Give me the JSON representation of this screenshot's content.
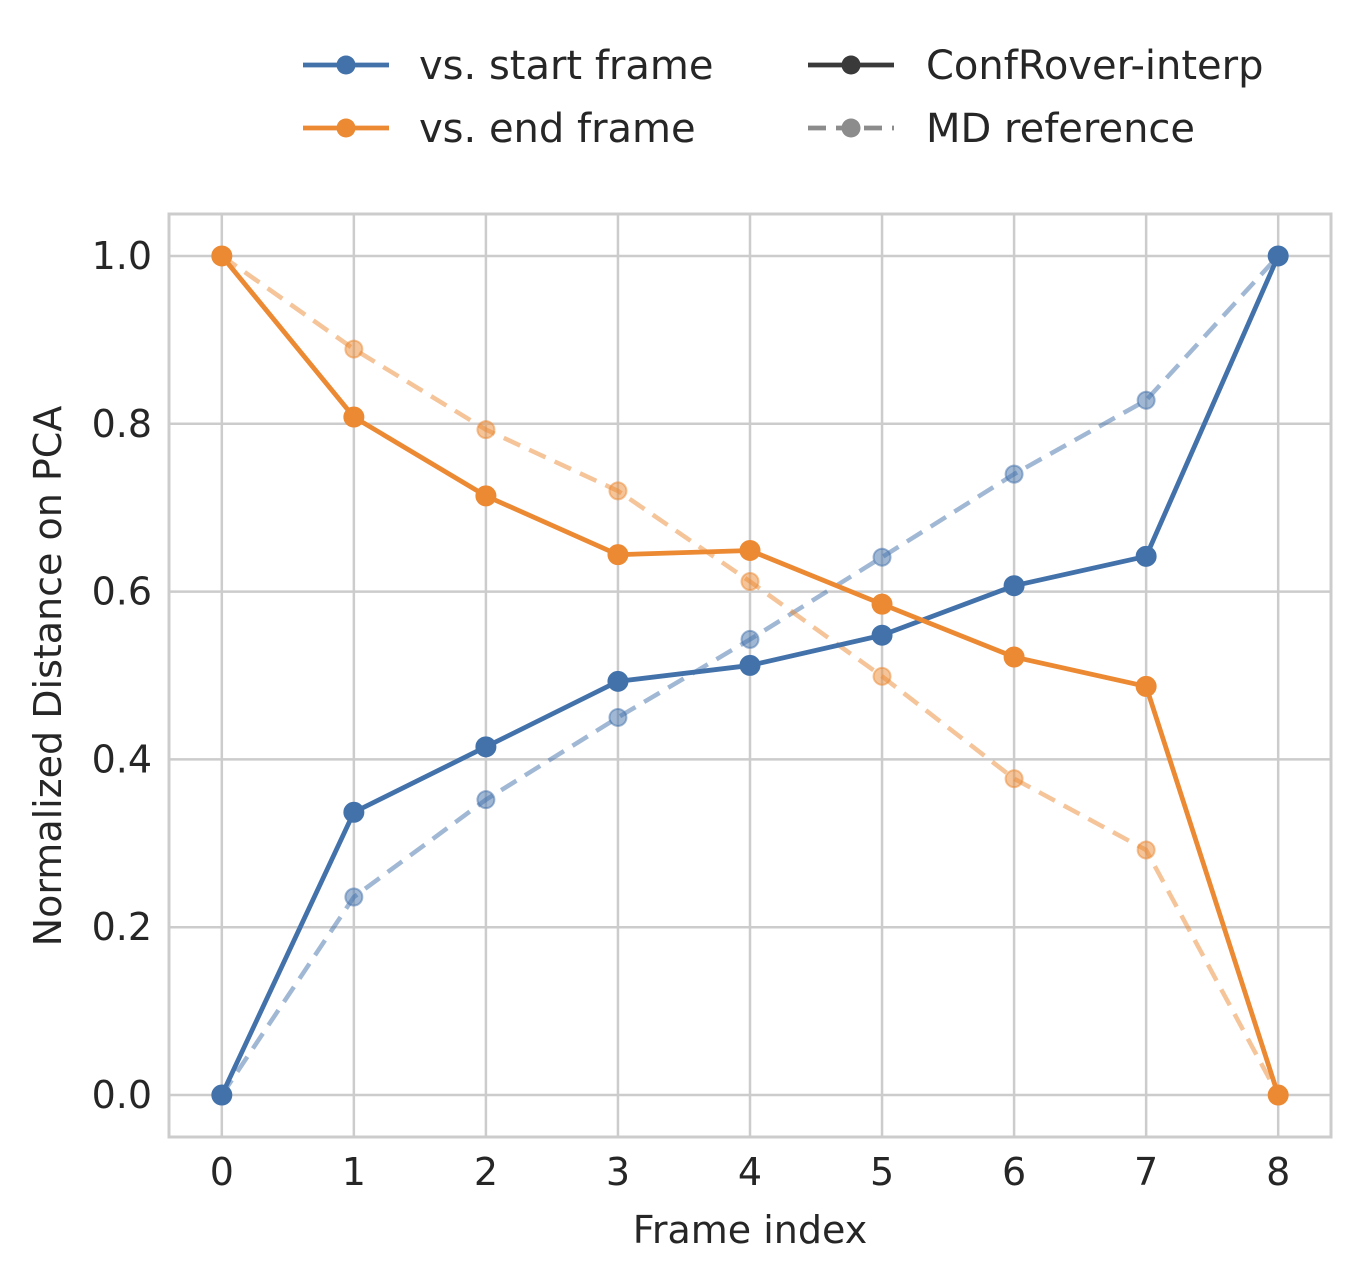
{
  "chart_data": {
    "type": "line",
    "title": "",
    "xlabel": "Frame index",
    "ylabel": "Normalized Distance on PCA",
    "x": [
      0,
      1,
      2,
      3,
      4,
      5,
      6,
      7,
      8
    ],
    "xlim": [
      -0.4,
      8.4
    ],
    "ylim": [
      -0.05,
      1.05
    ],
    "xticks": [
      0,
      1,
      2,
      3,
      4,
      5,
      6,
      7,
      8
    ],
    "yticks": [
      0.0,
      0.2,
      0.4,
      0.6,
      0.8,
      1.0
    ],
    "ytick_labels": [
      "0.0",
      "0.2",
      "0.4",
      "0.6",
      "0.8",
      "1.0"
    ],
    "grid": true,
    "legend_position": "top-center, outside plot, two columns",
    "colors": {
      "start": "#4372ab",
      "end": "#ec8933",
      "neutral": "#3a3a3a",
      "neutral_dashed": "#8c8c8c",
      "grid": "#cccccc",
      "frame": "#cccccc"
    },
    "series": [
      {
        "name": "vs. start frame",
        "method": "ConfRover-interp",
        "color_key": "start",
        "style": "solid",
        "values": [
          0.0,
          0.337,
          0.415,
          0.493,
          0.512,
          0.548,
          0.607,
          0.642,
          1.0
        ]
      },
      {
        "name": "vs. end frame",
        "method": "ConfRover-interp",
        "color_key": "end",
        "style": "solid",
        "values": [
          1.0,
          0.808,
          0.714,
          0.644,
          0.649,
          0.585,
          0.522,
          0.487,
          0.0
        ]
      },
      {
        "name": "vs. start frame",
        "method": "MD reference",
        "color_key": "start",
        "style": "dashed",
        "values": [
          0.0,
          0.236,
          0.352,
          0.45,
          0.543,
          0.641,
          0.74,
          0.828,
          1.0
        ]
      },
      {
        "name": "vs. end frame",
        "method": "MD reference",
        "color_key": "end",
        "style": "dashed",
        "values": [
          1.0,
          0.889,
          0.793,
          0.72,
          0.612,
          0.499,
          0.377,
          0.292,
          0.0
        ]
      }
    ],
    "legend": [
      {
        "label": "vs. start frame",
        "color_key": "start",
        "style": "solid"
      },
      {
        "label": "vs. end frame",
        "color_key": "end",
        "style": "solid"
      },
      {
        "label": "ConfRover-interp",
        "color_key": "neutral",
        "style": "solid"
      },
      {
        "label": "MD reference",
        "color_key": "neutral_dashed",
        "style": "dashed"
      }
    ]
  }
}
